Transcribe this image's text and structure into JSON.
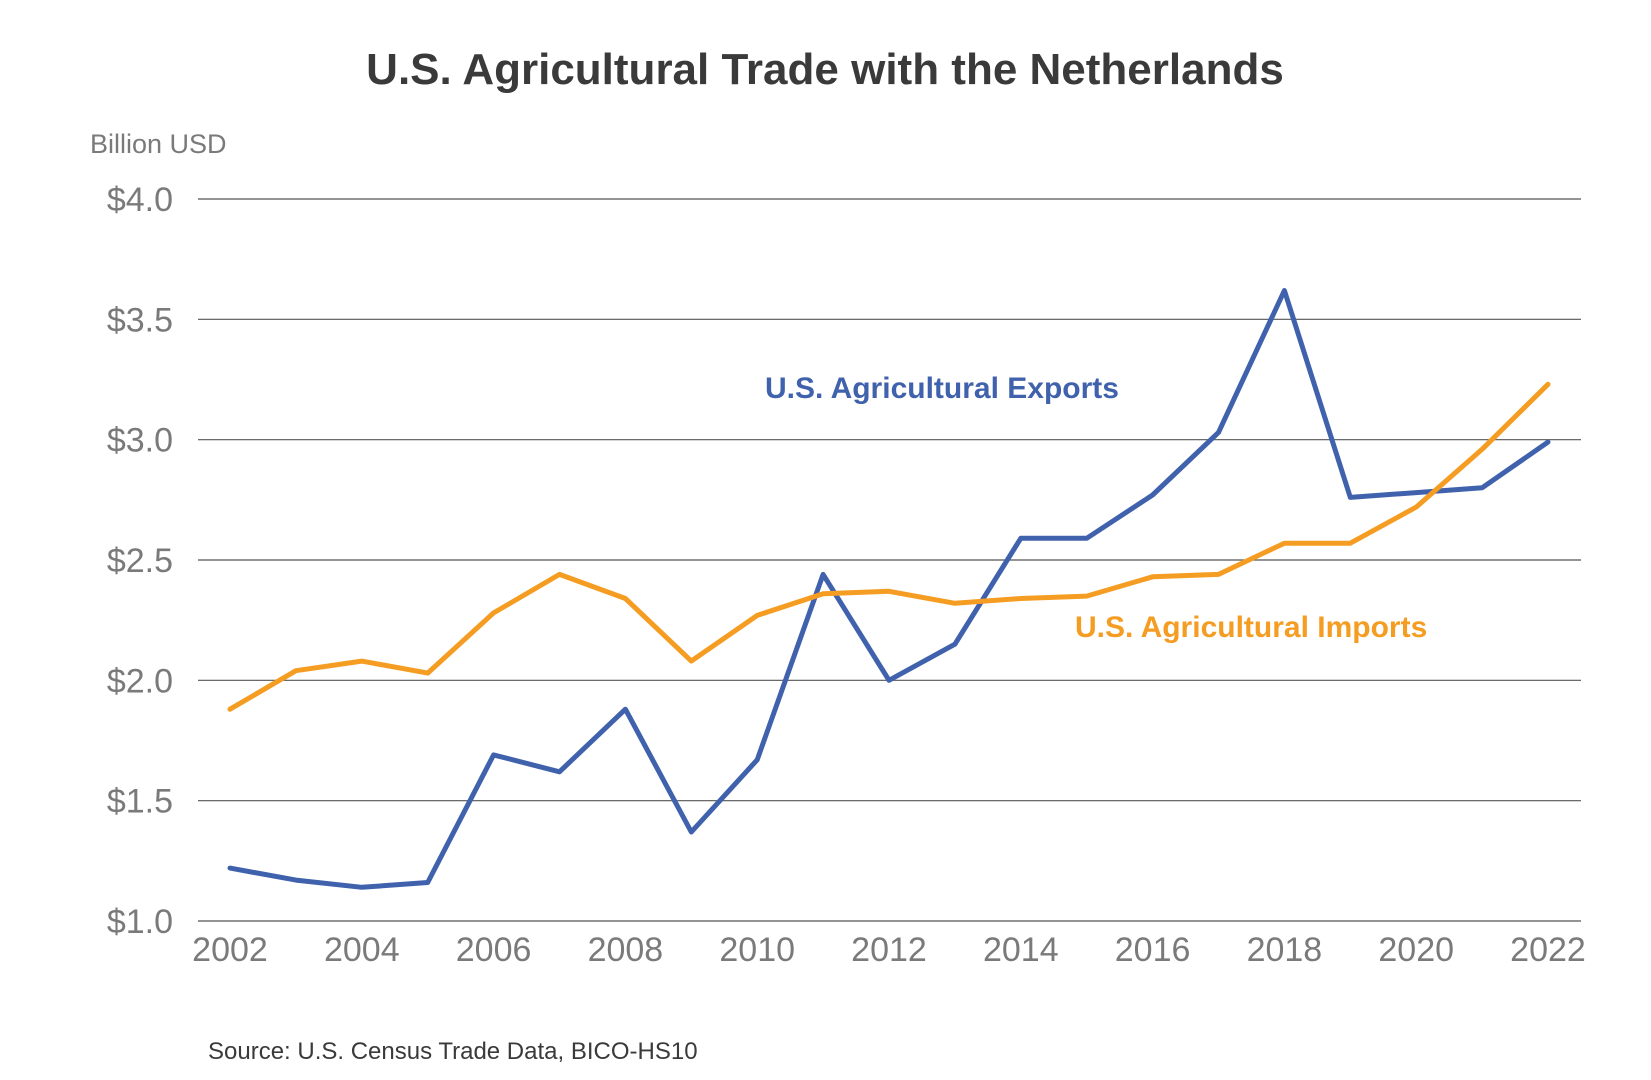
{
  "chart_data": {
    "type": "line",
    "title": "U.S. Agricultural Trade with the Netherlands",
    "unit_label": "Billion USD",
    "source": "Source: U.S. Census Trade Data, BICO-HS10",
    "x": [
      2002,
      2003,
      2004,
      2005,
      2006,
      2007,
      2008,
      2009,
      2010,
      2011,
      2012,
      2013,
      2014,
      2015,
      2016,
      2017,
      2018,
      2019,
      2020,
      2021,
      2022
    ],
    "x_ticks": [
      "2002",
      "2004",
      "2006",
      "2008",
      "2010",
      "2012",
      "2014",
      "2016",
      "2018",
      "2020",
      "2022"
    ],
    "ylim": [
      1.0,
      4.0
    ],
    "y_ticks": [
      {
        "value": 4.0,
        "label": "$4.0"
      },
      {
        "value": 3.5,
        "label": "$3.5"
      },
      {
        "value": 3.0,
        "label": "$3.0"
      },
      {
        "value": 2.5,
        "label": "$2.5"
      },
      {
        "value": 2.0,
        "label": "$2.0"
      },
      {
        "value": 1.5,
        "label": "$1.5"
      },
      {
        "value": 1.0,
        "label": "$1.0"
      }
    ],
    "grid": true,
    "series": [
      {
        "name": "U.S. Agricultural Exports",
        "color": "#4062ad",
        "values": [
          1.22,
          1.17,
          1.14,
          1.16,
          1.69,
          1.62,
          1.88,
          1.37,
          1.67,
          2.44,
          2.0,
          2.15,
          2.59,
          2.59,
          2.77,
          3.03,
          3.62,
          2.76,
          2.78,
          2.8,
          2.99
        ]
      },
      {
        "name": "U.S. Agricultural Imports",
        "color": "#f59d22",
        "values": [
          1.88,
          2.04,
          2.08,
          2.03,
          2.28,
          2.44,
          2.34,
          2.08,
          2.27,
          2.36,
          2.37,
          2.32,
          2.34,
          2.35,
          2.43,
          2.44,
          2.57,
          2.57,
          2.72,
          2.96,
          3.23
        ]
      }
    ]
  }
}
